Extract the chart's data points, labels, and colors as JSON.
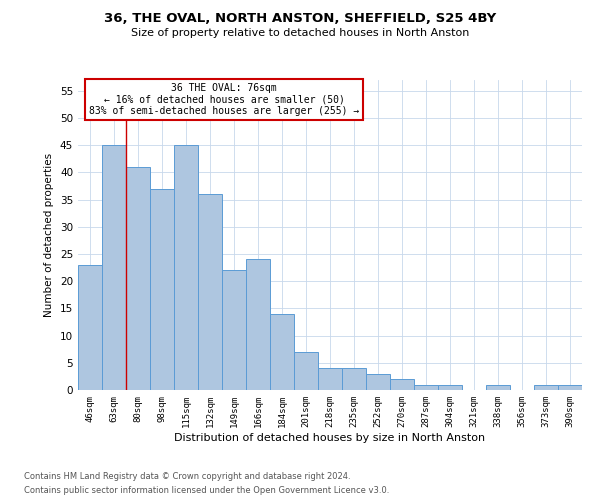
{
  "title_line1": "36, THE OVAL, NORTH ANSTON, SHEFFIELD, S25 4BY",
  "title_line2": "Size of property relative to detached houses in North Anston",
  "xlabel": "Distribution of detached houses by size in North Anston",
  "ylabel": "Number of detached properties",
  "categories": [
    "46sqm",
    "63sqm",
    "80sqm",
    "98sqm",
    "115sqm",
    "132sqm",
    "149sqm",
    "166sqm",
    "184sqm",
    "201sqm",
    "218sqm",
    "235sqm",
    "252sqm",
    "270sqm",
    "287sqm",
    "304sqm",
    "321sqm",
    "338sqm",
    "356sqm",
    "373sqm",
    "390sqm"
  ],
  "values": [
    23,
    45,
    41,
    37,
    45,
    36,
    22,
    24,
    14,
    7,
    4,
    4,
    3,
    2,
    1,
    1,
    0,
    1,
    0,
    1,
    1
  ],
  "bar_color": "#aec6e0",
  "bar_edge_color": "#5b9bd5",
  "highlight_color": "#cc0000",
  "annotation_text_line1": "36 THE OVAL: 76sqm",
  "annotation_text_line2": "← 16% of detached houses are smaller (50)",
  "annotation_text_line3": "83% of semi-detached houses are larger (255) →",
  "annotation_box_color": "#cc0000",
  "ylim": [
    0,
    57
  ],
  "yticks": [
    0,
    5,
    10,
    15,
    20,
    25,
    30,
    35,
    40,
    45,
    50,
    55
  ],
  "footer_line1": "Contains HM Land Registry data © Crown copyright and database right 2024.",
  "footer_line2": "Contains public sector information licensed under the Open Government Licence v3.0.",
  "background_color": "#ffffff",
  "grid_color": "#c8d8eb"
}
